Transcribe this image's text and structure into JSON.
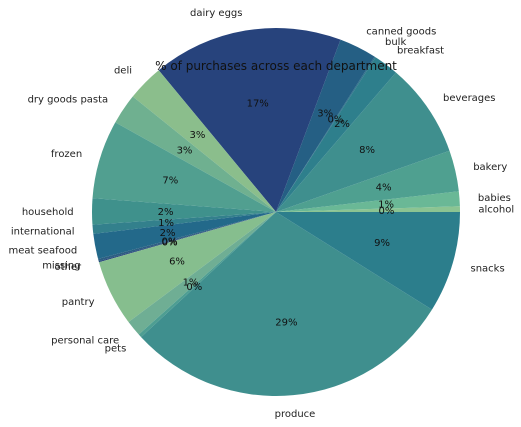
{
  "chart_data": {
    "type": "pie",
    "title": "% of purchases across each department",
    "start_angle_deg": 0,
    "direction": "counterclockwise",
    "slices": [
      {
        "label": "alcohol",
        "value": 0.5,
        "pct_label": "0%",
        "color": "#8cc492"
      },
      {
        "label": "babies",
        "value": 1.3,
        "pct_label": "1%",
        "color": "#6ab896"
      },
      {
        "label": "bakery",
        "value": 3.6,
        "pct_label": "4%",
        "color": "#4fa090"
      },
      {
        "label": "beverages",
        "value": 8.3,
        "pct_label": "8%",
        "color": "#3f8f8e"
      },
      {
        "label": "breakfast",
        "value": 2.2,
        "pct_label": "2%",
        "color": "#2e7f8c"
      },
      {
        "label": "bulk",
        "value": 0.1,
        "pct_label": "0%",
        "color": "#2c6f88"
      },
      {
        "label": "canned goods",
        "value": 3.3,
        "pct_label": "3%",
        "color": "#255f84"
      },
      {
        "label": "dairy eggs",
        "value": 16.7,
        "pct_label": "17%",
        "color": "#27437c"
      },
      {
        "label": "deli",
        "value": 3.2,
        "pct_label": "3%",
        "color": "#8bbe8c"
      },
      {
        "label": "dry goods pasta",
        "value": 2.7,
        "pct_label": "3%",
        "color": "#6fb090"
      },
      {
        "label": "frozen",
        "value": 6.9,
        "pct_label": "7%",
        "color": "#519f90"
      },
      {
        "label": "household",
        "value": 2.3,
        "pct_label": "2%",
        "color": "#3f918c"
      },
      {
        "label": "international",
        "value": 0.8,
        "pct_label": "1%",
        "color": "#33808c"
      },
      {
        "label": "meat seafood",
        "value": 2.2,
        "pct_label": "2%",
        "color": "#23698a"
      },
      {
        "label": "missing",
        "value": 0.2,
        "pct_label": "0%",
        "color": "#2c5f82"
      },
      {
        "label": "other",
        "value": 0.1,
        "pct_label": "0%",
        "color": "#27437c"
      },
      {
        "label": "pantry",
        "value": 5.8,
        "pct_label": "6%",
        "color": "#86be8e"
      },
      {
        "label": "personal care",
        "value": 1.4,
        "pct_label": "1%",
        "color": "#6fae94"
      },
      {
        "label": "pets",
        "value": 0.3,
        "pct_label": "0%",
        "color": "#4e9e92"
      },
      {
        "label": "produce",
        "value": 29.2,
        "pct_label": "29%",
        "color": "#3f8f8e"
      },
      {
        "label": "snacks",
        "value": 8.9,
        "pct_label": "9%",
        "color": "#2c7e8c"
      }
    ]
  }
}
